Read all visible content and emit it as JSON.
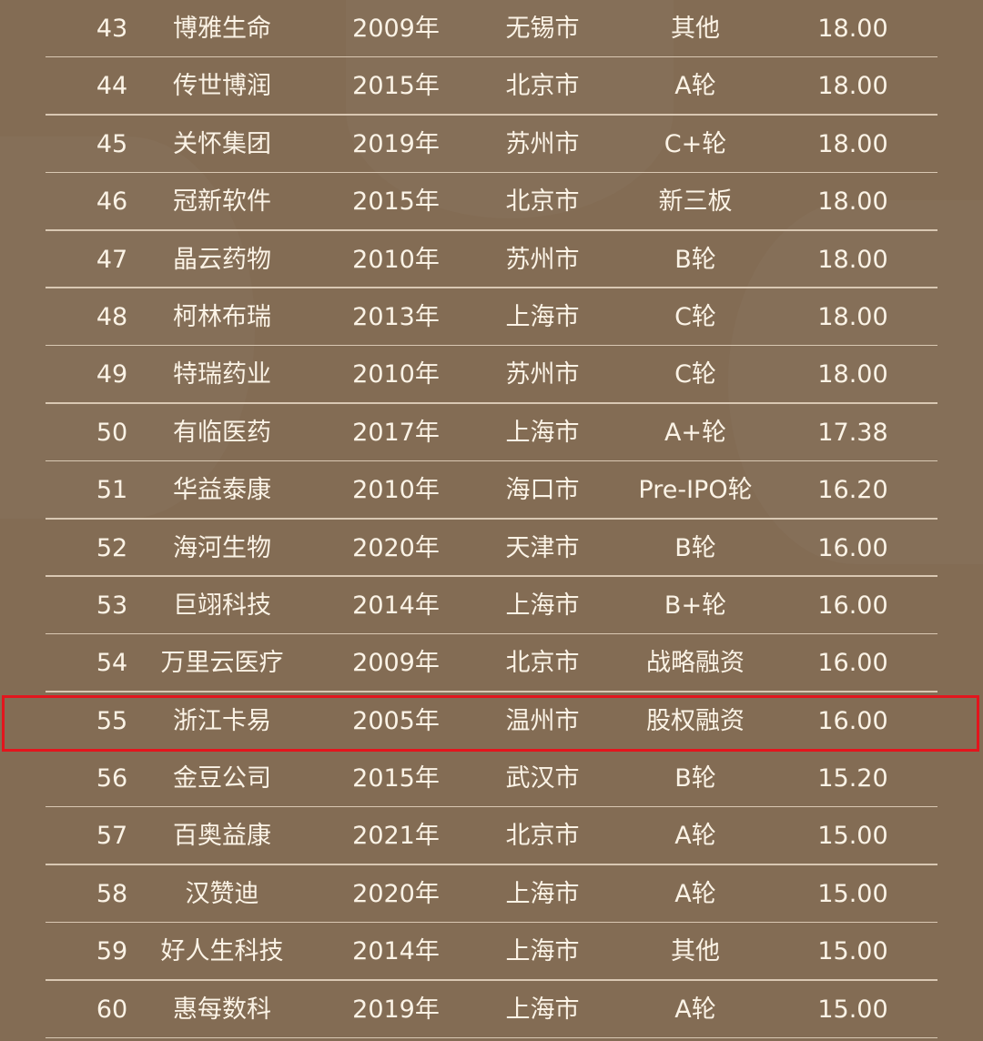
{
  "highlight_color": "#e3151d",
  "rows": [
    [
      "43",
      "博雅生命",
      "2009年",
      "无锡市",
      "其他",
      "18.00"
    ],
    [
      "44",
      "传世博润",
      "2015年",
      "北京市",
      "A轮",
      "18.00"
    ],
    [
      "45",
      "关怀集团",
      "2019年",
      "苏州市",
      "C+轮",
      "18.00"
    ],
    [
      "46",
      "冠新软件",
      "2015年",
      "北京市",
      "新三板",
      "18.00"
    ],
    [
      "47",
      "晶云药物",
      "2010年",
      "苏州市",
      "B轮",
      "18.00"
    ],
    [
      "48",
      "柯林布瑞",
      "2013年",
      "上海市",
      "C轮",
      "18.00"
    ],
    [
      "49",
      "特瑞药业",
      "2010年",
      "苏州市",
      "C轮",
      "18.00"
    ],
    [
      "50",
      "有临医药",
      "2017年",
      "上海市",
      "A+轮",
      "17.38"
    ],
    [
      "51",
      "华益泰康",
      "2010年",
      "海口市",
      "Pre-IPO轮",
      "16.20"
    ],
    [
      "52",
      "海河生物",
      "2020年",
      "天津市",
      "B轮",
      "16.00"
    ],
    [
      "53",
      "巨翊科技",
      "2014年",
      "上海市",
      "B+轮",
      "16.00"
    ],
    [
      "54",
      "万里云医疗",
      "2009年",
      "北京市",
      "战略融资",
      "16.00"
    ],
    [
      "55",
      "浙江卡易",
      "2005年",
      "温州市",
      "股权融资",
      "16.00"
    ],
    [
      "56",
      "金豆公司",
      "2015年",
      "武汉市",
      "B轮",
      "15.20"
    ],
    [
      "57",
      "百奥益康",
      "2021年",
      "北京市",
      "A轮",
      "15.00"
    ],
    [
      "58",
      "汉赞迪",
      "2020年",
      "上海市",
      "A轮",
      "15.00"
    ],
    [
      "59",
      "好人生科技",
      "2014年",
      "上海市",
      "其他",
      "15.00"
    ],
    [
      "60",
      "惠每数科",
      "2019年",
      "上海市",
      "A轮",
      "15.00"
    ]
  ],
  "highlighted_rank": "55"
}
